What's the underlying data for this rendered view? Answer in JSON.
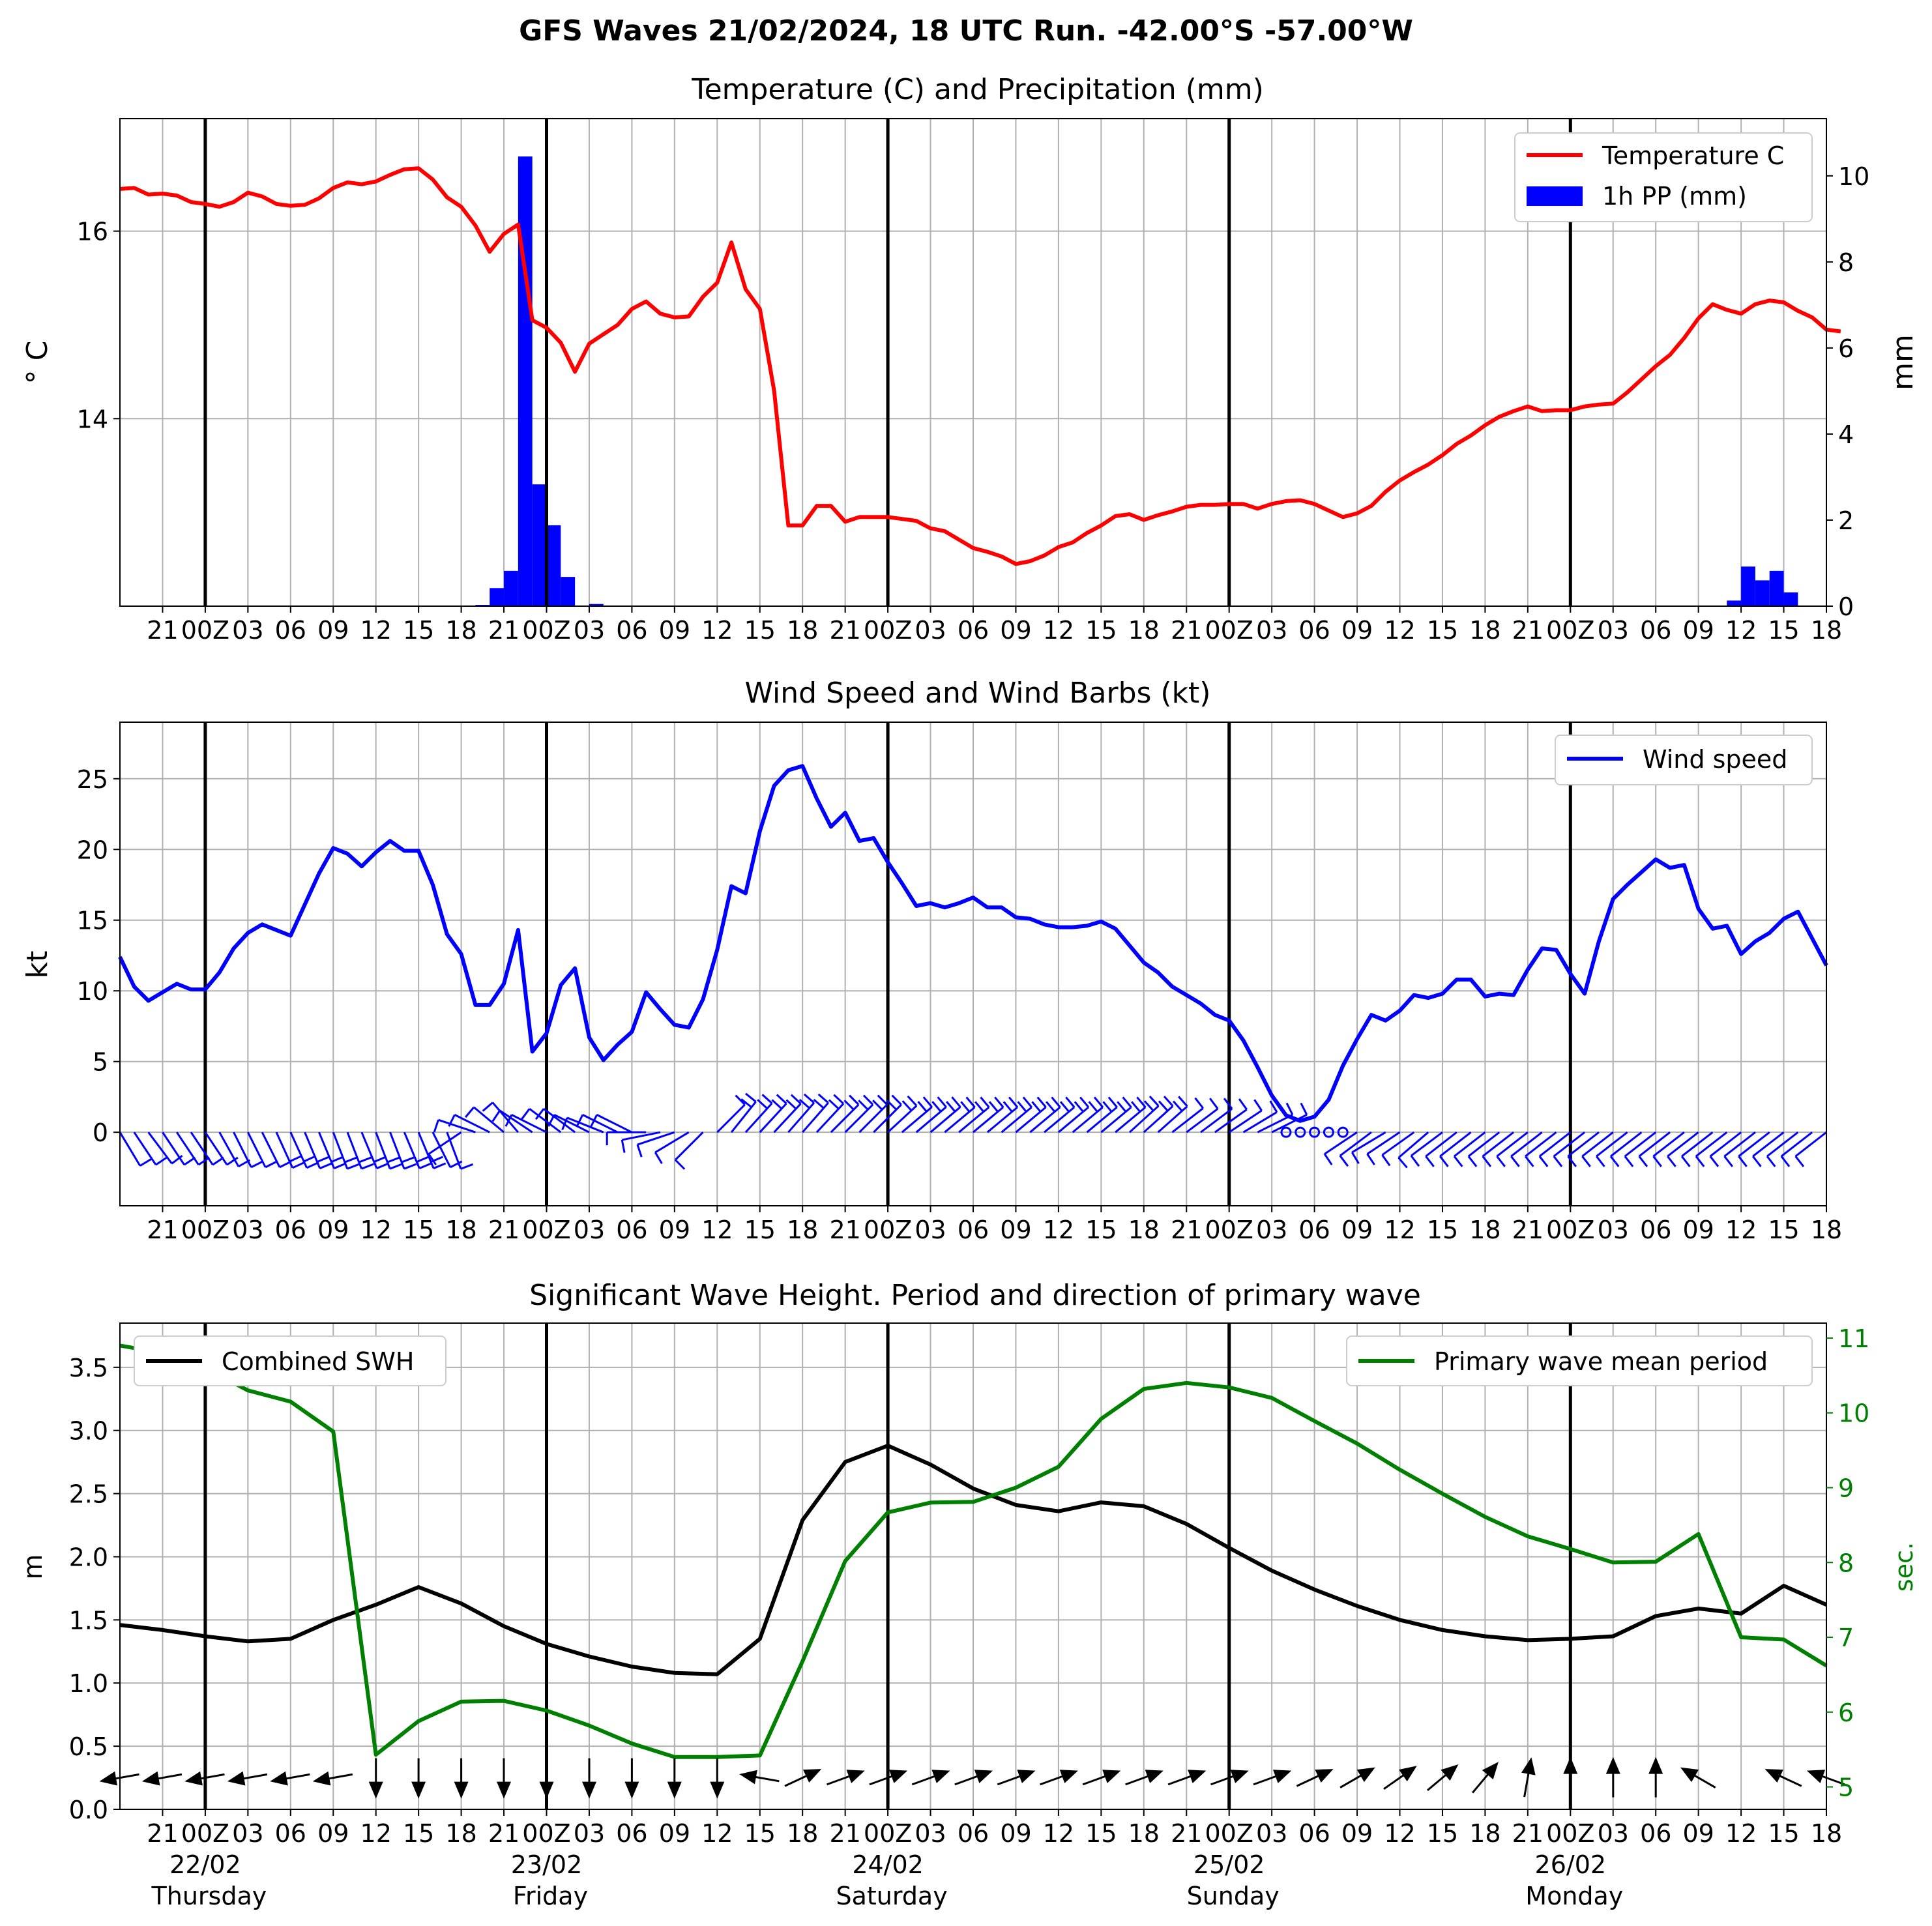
{
  "title": "GFS Waves 21/02/2024, 18 UTC Run. -42.00°S -57.00°W",
  "time_axis": {
    "start": "2024-02-21 18:00",
    "end": "2024-02-26 18:00",
    "day_lines": [
      "2024-02-22 00:00",
      "2024-02-23 00:00",
      "2024-02-24 00:00",
      "2024-02-25 00:00",
      "2024-02-26 00:00"
    ],
    "tick_labels": [
      "21",
      "00Z",
      "03",
      "06",
      "09",
      "12",
      "15",
      "18",
      "21",
      "00Z",
      "03",
      "06",
      "09",
      "12",
      "15",
      "18",
      "21",
      "00Z",
      "03",
      "06",
      "09",
      "12",
      "15",
      "18",
      "21",
      "00Z",
      "03",
      "06",
      "09",
      "12",
      "15",
      "18",
      "21",
      "00Z",
      "03",
      "06",
      "09",
      "12",
      "15",
      "18"
    ],
    "date_labels": [
      {
        "date": "22/02",
        "weekday": "Thursday"
      },
      {
        "date": "23/02",
        "weekday": "Friday"
      },
      {
        "date": "24/02",
        "weekday": "Saturday"
      },
      {
        "date": "25/02",
        "weekday": "Sunday"
      },
      {
        "date": "26/02",
        "weekday": "Monday"
      }
    ]
  },
  "chart_data": [
    {
      "type": "line",
      "title": "Temperature (C) and Precipitation (mm)",
      "ylabel": "° C",
      "ylabel_right": "mm",
      "ylim": [
        12.0,
        17.2
      ],
      "ylim_right": [
        0,
        11.33
      ],
      "yticks": [
        14,
        16
      ],
      "yticks_right": [
        0,
        2,
        4,
        6,
        8,
        10
      ],
      "legend": "top-right",
      "grid": true,
      "colors": {
        "temperature": "#ff0000",
        "precip": "#0000ff"
      },
      "series": [
        {
          "name": "Temperature C",
          "x_hours_step": 1,
          "values": [
            16.45,
            16.46,
            16.39,
            16.4,
            16.38,
            16.31,
            16.29,
            16.26,
            16.31,
            16.41,
            16.37,
            16.29,
            16.27,
            16.28,
            16.35,
            16.46,
            16.52,
            16.5,
            16.53,
            16.6,
            16.66,
            16.67,
            16.55,
            16.36,
            16.26,
            16.06,
            15.78,
            15.97,
            16.07,
            15.05,
            14.97,
            14.81,
            14.5,
            14.8,
            14.9,
            15.0,
            15.17,
            15.25,
            15.12,
            15.08,
            15.09,
            15.3,
            15.45,
            15.88,
            15.38,
            15.17,
            14.3,
            12.86,
            12.86,
            13.07,
            13.07,
            12.9,
            12.95,
            12.95,
            12.95,
            12.93,
            12.91,
            12.83,
            12.8,
            12.71,
            12.62,
            12.58,
            12.53,
            12.45,
            12.48,
            12.54,
            12.63,
            12.68,
            12.78,
            12.86,
            12.96,
            12.98,
            12.92,
            12.97,
            13.01,
            13.06,
            13.08,
            13.08,
            13.09,
            13.09,
            13.04,
            13.09,
            13.12,
            13.13,
            13.09,
            13.02,
            12.95,
            12.99,
            13.07,
            13.22,
            13.34,
            13.43,
            13.51,
            13.61,
            13.73,
            13.82,
            13.93,
            14.02,
            14.08,
            14.13,
            14.08,
            14.09,
            14.09,
            14.13,
            14.15,
            14.16,
            14.28,
            14.42,
            14.56,
            14.68,
            14.86,
            15.07,
            15.22,
            15.16,
            15.12,
            15.22,
            15.26,
            15.24,
            15.15,
            15.08,
            14.95,
            14.93
          ]
        },
        {
          "name": "1h PP (mm)",
          "type": "bar",
          "x_start_hour": 0,
          "values": [
            0,
            0,
            0,
            0,
            0,
            0,
            0,
            0,
            0,
            0,
            0,
            0,
            0,
            0,
            0,
            0,
            0,
            0,
            0,
            0,
            0,
            0,
            0,
            0,
            0,
            0.03,
            0.42,
            0.82,
            10.45,
            2.83,
            1.88,
            0.68,
            0,
            0.05,
            0,
            0,
            0,
            0,
            0,
            0,
            0,
            0,
            0,
            0,
            0,
            0,
            0,
            0,
            0,
            0,
            0,
            0,
            0,
            0,
            0,
            0,
            0,
            0,
            0,
            0,
            0,
            0,
            0,
            0,
            0,
            0,
            0,
            0,
            0,
            0,
            0,
            0,
            0,
            0,
            0,
            0,
            0,
            0,
            0,
            0,
            0,
            0,
            0,
            0,
            0,
            0,
            0,
            0,
            0,
            0,
            0,
            0,
            0,
            0,
            0,
            0,
            0,
            0,
            0,
            0,
            0,
            0,
            0,
            0,
            0,
            0,
            0,
            0,
            0,
            0,
            0,
            0,
            0,
            0.13,
            0.92,
            0.6,
            0.82,
            0.32
          ]
        }
      ]
    },
    {
      "type": "line",
      "title": "Wind Speed and Wind Barbs (kt)",
      "ylabel": "kt",
      "ylim": [
        -5.2,
        29.0
      ],
      "yticks": [
        0,
        5,
        10,
        15,
        20,
        25
      ],
      "legend": "top-right",
      "grid": true,
      "colors": {
        "wind": "#0000ff"
      },
      "series": [
        {
          "name": "Wind speed",
          "x_hours_step": 1,
          "values": [
            12.4,
            10.3,
            9.3,
            9.9,
            10.5,
            10.1,
            10.1,
            11.3,
            13.0,
            14.1,
            14.7,
            14.3,
            13.9,
            16.1,
            18.3,
            20.1,
            19.7,
            18.8,
            19.8,
            20.6,
            19.9,
            19.9,
            17.5,
            14.0,
            12.6,
            9.0,
            9.0,
            10.5,
            14.3,
            5.7,
            7.0,
            10.4,
            11.6,
            6.7,
            5.1,
            6.2,
            7.1,
            9.9,
            8.7,
            7.6,
            7.4,
            9.4,
            12.9,
            17.4,
            16.9,
            21.3,
            24.5,
            25.6,
            25.9,
            23.6,
            21.6,
            22.6,
            20.6,
            20.8,
            19.1,
            17.6,
            16.0,
            16.2,
            15.9,
            16.2,
            16.6,
            15.9,
            15.9,
            15.2,
            15.1,
            14.7,
            14.5,
            14.5,
            14.6,
            14.9,
            14.4,
            13.2,
            12.0,
            11.3,
            10.3,
            9.7,
            9.1,
            8.3,
            7.9,
            6.5,
            4.6,
            2.6,
            1.2,
            0.8,
            1.1,
            2.3,
            4.7,
            6.6,
            8.3,
            7.9,
            8.6,
            9.7,
            9.5,
            9.8,
            10.8,
            10.8,
            9.6,
            9.8,
            9.7,
            11.5,
            13.0,
            12.9,
            11.2,
            9.8,
            13.5,
            16.5,
            17.5,
            18.4,
            19.3,
            18.7,
            18.9,
            15.8,
            14.4,
            14.6,
            12.6,
            13.5,
            14.1,
            15.1,
            15.6,
            13.7,
            11.8
          ]
        }
      ],
      "barbs_u": [
        -6,
        -6,
        -6,
        -6,
        -6,
        -6,
        -6,
        -5,
        -5,
        -5,
        -5,
        -5,
        -5,
        -5,
        -5,
        -5,
        -5,
        -5,
        -5,
        -5,
        -5,
        -5,
        -5,
        -3,
        3,
        6,
        6,
        6,
        6,
        6,
        6,
        4,
        4,
        4,
        5,
        4,
        4,
        5,
        5,
        6,
        5,
        3,
        -3,
        -8,
        -10,
        -12,
        -14,
        -14,
        -14,
        -14,
        -14,
        -14,
        -14,
        -13,
        -13,
        -13,
        -13,
        -13,
        -12,
        -12,
        -12,
        -12,
        -12,
        -12,
        -12,
        -12,
        -12,
        -12,
        -12,
        -12,
        -12,
        -11,
        -10,
        -9,
        -9,
        -8,
        -8,
        -7,
        -6,
        -5,
        -4,
        -2,
        -1,
        -0.5,
        -0.5,
        -0.5,
        1,
        3,
        4,
        5,
        6,
        7,
        7,
        8,
        9,
        9,
        9,
        9,
        9,
        9,
        9,
        9,
        9,
        9,
        9,
        9,
        9,
        9,
        9,
        9,
        9,
        9,
        9,
        9,
        9,
        9,
        9,
        9,
        9,
        9,
        9
      ],
      "barbs_v": [
        10,
        9,
        8,
        9,
        9,
        9,
        9,
        9,
        10,
        10,
        10,
        11,
        11,
        12,
        12,
        13,
        13,
        12,
        13,
        13,
        12,
        12,
        10,
        8,
        2,
        -2,
        -3,
        -5,
        -7,
        -4,
        -3,
        -3,
        -3,
        -2,
        -2,
        -2,
        -2,
        0,
        1,
        2,
        3,
        3,
        -3,
        -10,
        -11,
        -13,
        -15,
        -16,
        -16,
        -15,
        -14,
        -14,
        -14,
        -13,
        -12,
        -11,
        -11,
        -11,
        -10,
        -10,
        -10,
        -10,
        -10,
        -10,
        -10,
        -10,
        -10,
        -10,
        -10,
        -10,
        -10,
        -10,
        -9,
        -8,
        -7,
        -6,
        -6,
        -5,
        -4,
        -3,
        -2,
        -1,
        -0.5,
        -0.5,
        -0.5,
        -0.5,
        1,
        2,
        3,
        3,
        4,
        5,
        6,
        6,
        7,
        7,
        7,
        7,
        7,
        7,
        7,
        7,
        7,
        7,
        7,
        7,
        7,
        7,
        7,
        7,
        7,
        7,
        7,
        7,
        7,
        7,
        7,
        7,
        7,
        7,
        7
      ]
    },
    {
      "type": "line",
      "title": "Significant Wave Height. Period and direction of primary wave",
      "ylabel": "m",
      "ylabel_right": "sec.",
      "ylim": [
        0,
        3.85
      ],
      "ylim_right": [
        4.7,
        11.2
      ],
      "yticks": [
        0.0,
        0.5,
        1.0,
        1.5,
        2.0,
        2.5,
        3.0,
        3.5
      ],
      "yticks_right": [
        5,
        6,
        7,
        8,
        9,
        10,
        11
      ],
      "grid": true,
      "colors": {
        "swh": "#000000",
        "period": "#008000",
        "period_axis": "#008000"
      },
      "series": [
        {
          "name": "Combined SWH",
          "legend": "top-left",
          "x_hours_step": 3,
          "values": [
            1.46,
            1.42,
            1.37,
            1.33,
            1.35,
            1.5,
            1.62,
            1.76,
            1.63,
            1.45,
            1.31,
            1.21,
            1.13,
            1.08,
            1.07,
            1.35,
            2.29,
            2.75,
            2.88,
            2.73,
            2.54,
            2.41,
            2.36,
            2.43,
            2.4,
            2.26,
            2.07,
            1.89,
            1.74,
            1.61,
            1.5,
            1.42,
            1.37,
            1.34,
            1.35,
            1.37,
            1.53,
            1.59,
            1.55,
            1.77,
            1.62
          ]
        },
        {
          "name": "Primary wave mean period",
          "legend": "top-right",
          "axis": "right",
          "x_hours_step": 3,
          "values": [
            10.9,
            10.8,
            10.6,
            10.3,
            10.15,
            9.75,
            5.43,
            5.88,
            6.14,
            6.15,
            6.02,
            5.82,
            5.58,
            5.4,
            5.4,
            5.42,
            6.68,
            8.02,
            8.67,
            8.8,
            8.81,
            9.0,
            9.28,
            9.92,
            10.32,
            10.4,
            10.34,
            10.2,
            9.89,
            9.59,
            9.24,
            8.92,
            8.61,
            8.35,
            8.18,
            8.0,
            8.01,
            8.38,
            7.0,
            6.97,
            6.62
          ]
        }
      ],
      "wave_direction_arrows": {
        "x_hours_step": 3,
        "angles_deg": [
          170,
          170,
          170,
          170,
          170,
          170,
          90,
          90,
          90,
          90,
          90,
          90,
          90,
          90,
          90,
          190,
          -25,
          -20,
          -20,
          -20,
          -20,
          -20,
          -20,
          -20,
          -20,
          -20,
          -20,
          -20,
          -25,
          -30,
          -35,
          -40,
          -50,
          -80,
          -90,
          -90,
          -90,
          -150,
          null,
          -155,
          -160
        ]
      }
    }
  ]
}
